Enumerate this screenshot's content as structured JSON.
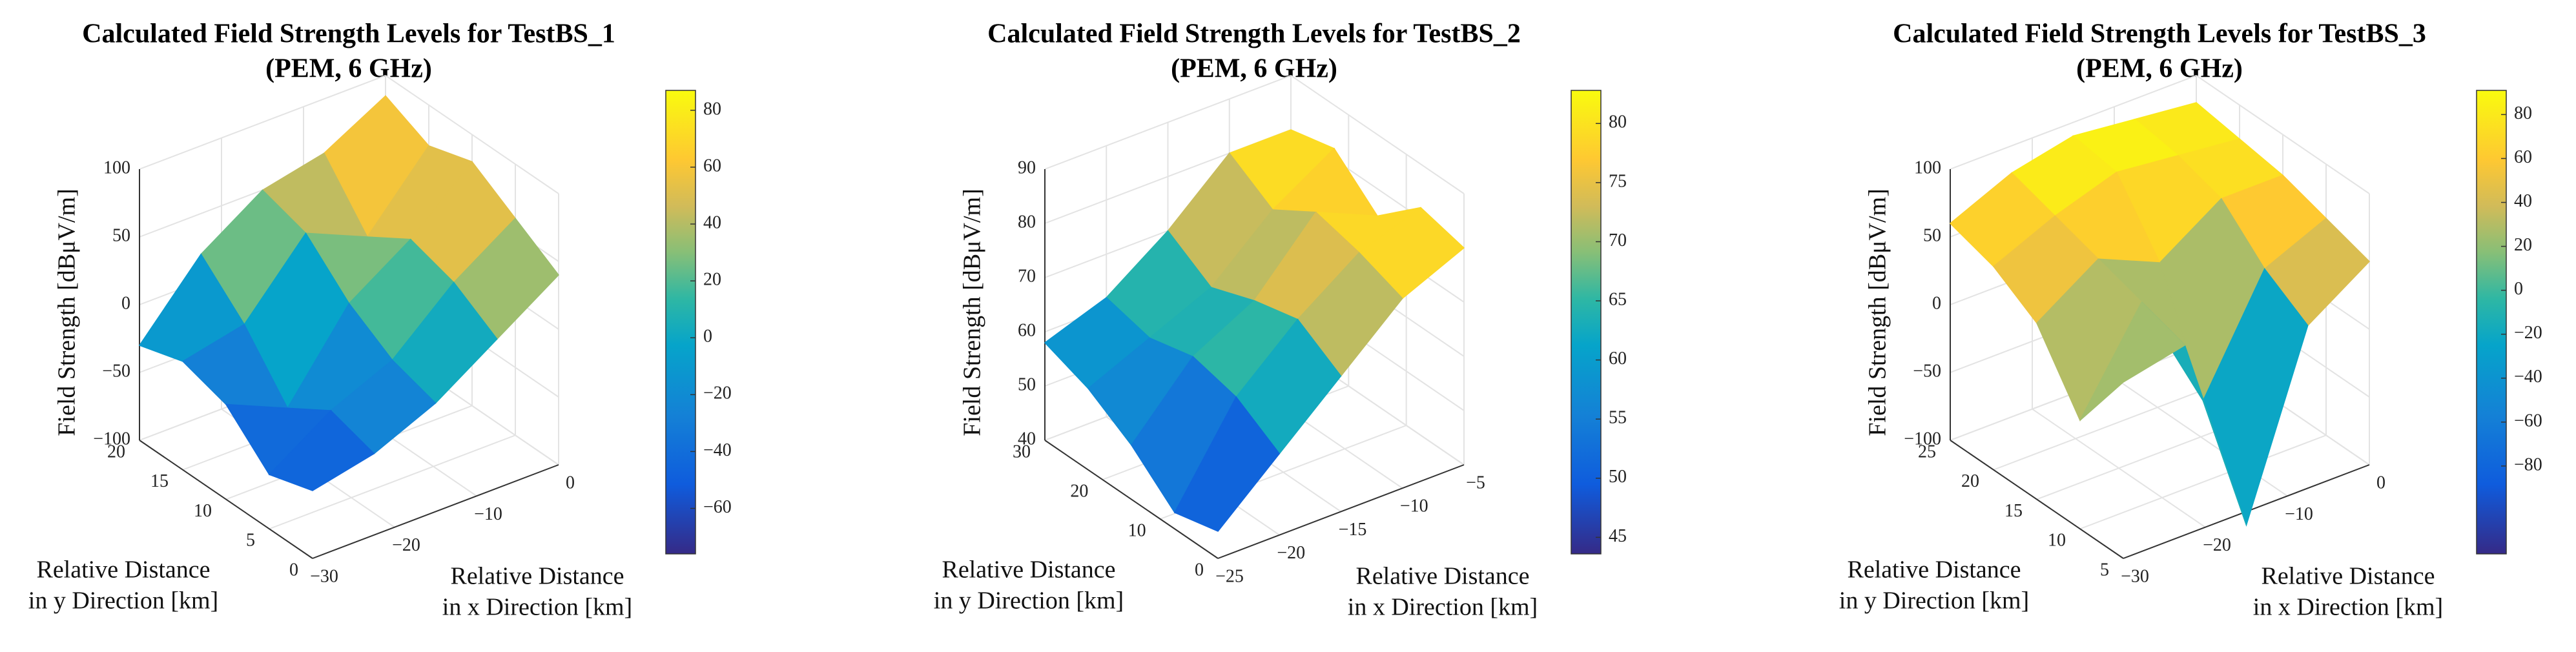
{
  "chart_data": [
    {
      "type": "surface",
      "title": [
        "Calculated Field Strength Levels for TestBS_1",
        "(PEM, 6 GHz)"
      ],
      "xlabel": [
        "Relative Distance",
        "in x Direction [km]"
      ],
      "ylabel": [
        "Relative Distance",
        "in y Direction [km]"
      ],
      "zlabel": "Field Strength [dBμV/m]",
      "x": [
        -30,
        -22.5,
        -15,
        -7.5,
        0
      ],
      "y": [
        0,
        5,
        10,
        15,
        20
      ],
      "z": [
        [
          -50,
          -40,
          -20,
          10,
          40
        ],
        [
          -60,
          -30,
          -10,
          30,
          60
        ],
        [
          -30,
          -50,
          10,
          40,
          80
        ],
        [
          -20,
          -10,
          40,
          20,
          70
        ],
        [
          -30,
          20,
          50,
          60,
          85
        ]
      ],
      "xlim": [
        -30,
        0
      ],
      "ylim": [
        0,
        20
      ],
      "zlim": [
        -100,
        100
      ],
      "xticks": [
        {
          "value": -30,
          "label": "−30"
        },
        {
          "value": -20,
          "label": "−20"
        },
        {
          "value": -10,
          "label": "−10"
        },
        0
      ],
      "yticks": [
        0,
        5,
        10,
        15,
        20
      ],
      "zticks": [
        {
          "value": -100,
          "label": "−100"
        },
        {
          "value": -50,
          "label": "−50"
        },
        0,
        50,
        100
      ],
      "clim": [
        -76,
        87
      ],
      "cticks": [
        {
          "value": -60,
          "label": "−60"
        },
        {
          "value": -40,
          "label": "−40"
        },
        {
          "value": -20,
          "label": "−20"
        },
        0,
        20,
        40,
        60,
        80
      ],
      "colormap": "parula",
      "grid": true
    },
    {
      "type": "surface",
      "title": [
        "Calculated Field Strength Levels for TestBS_2",
        "(PEM, 6 GHz)"
      ],
      "xlabel": [
        "Relative Distance",
        "in x Direction [km]"
      ],
      "ylabel": [
        "Relative Distance",
        "in y Direction [km]"
      ],
      "zlabel": "Field Strength [dBμV/m]",
      "x": [
        -25,
        -20,
        -15,
        -10,
        -5
      ],
      "y": [
        0,
        7.5,
        15,
        22.5,
        30
      ],
      "z": [
        [
          45,
          55,
          65,
          75,
          80
        ],
        [
          43,
          60,
          70,
          78,
          82
        ],
        [
          50,
          62,
          68,
          80,
          75
        ],
        [
          55,
          60,
          65,
          75,
          82
        ],
        [
          58,
          62,
          70,
          80,
          80
        ]
      ],
      "xlim": [
        -25,
        -5
      ],
      "ylim": [
        0,
        30
      ],
      "zlim": [
        40,
        90
      ],
      "xticks": [
        {
          "value": -25,
          "label": "−25"
        },
        {
          "value": -20,
          "label": "−20"
        },
        {
          "value": -15,
          "label": "−15"
        },
        {
          "value": -10,
          "label": "−10"
        },
        {
          "value": -5,
          "label": "−5"
        }
      ],
      "yticks": [
        0,
        10,
        20,
        30
      ],
      "zticks": [
        40,
        50,
        60,
        70,
        80,
        90
      ],
      "clim": [
        43.6,
        82.8
      ],
      "cticks": [
        45,
        50,
        55,
        60,
        65,
        70,
        75,
        80
      ],
      "colormap": "parula",
      "grid": true
    },
    {
      "type": "surface",
      "title": [
        "Calculated Field Strength Levels for TestBS_3",
        "(PEM, 6 GHz)"
      ],
      "xlabel": [
        "Relative Distance",
        "in x Direction [km]"
      ],
      "ylabel": [
        "Relative Distance",
        "in y Direction [km]"
      ],
      "zlabel": "Field Strength [dBμV/m]",
      "x": [
        -30,
        -22.5,
        -15,
        -7.5,
        0
      ],
      "y": [
        5,
        10,
        15,
        20,
        25
      ],
      "z": [
        [
          30,
          40,
          -110,
          20,
          50
        ],
        [
          -20,
          50,
          -40,
          40,
          60
        ],
        [
          30,
          60,
          40,
          70,
          70
        ],
        [
          50,
          70,
          85,
          80,
          75
        ],
        [
          60,
          80,
          90,
          85,
          80
        ]
      ],
      "xlim": [
        -30,
        0
      ],
      "ylim": [
        5,
        25
      ],
      "zlim": [
        -100,
        100
      ],
      "xticks": [
        {
          "value": -30,
          "label": "−30"
        },
        {
          "value": -20,
          "label": "−20"
        },
        {
          "value": -10,
          "label": "−10"
        },
        0
      ],
      "yticks": [
        5,
        10,
        15,
        20,
        25
      ],
      "zticks": [
        {
          "value": -100,
          "label": "−100"
        },
        {
          "value": -50,
          "label": "−50"
        },
        0,
        50,
        100
      ],
      "clim": [
        -120,
        91
      ],
      "cticks": [
        {
          "value": -80,
          "label": "−80"
        },
        {
          "value": -60,
          "label": "−60"
        },
        {
          "value": -40,
          "label": "−40"
        },
        {
          "value": -20,
          "label": "−20"
        },
        0,
        20,
        40,
        60,
        80
      ],
      "colormap": "parula",
      "grid": true
    }
  ]
}
